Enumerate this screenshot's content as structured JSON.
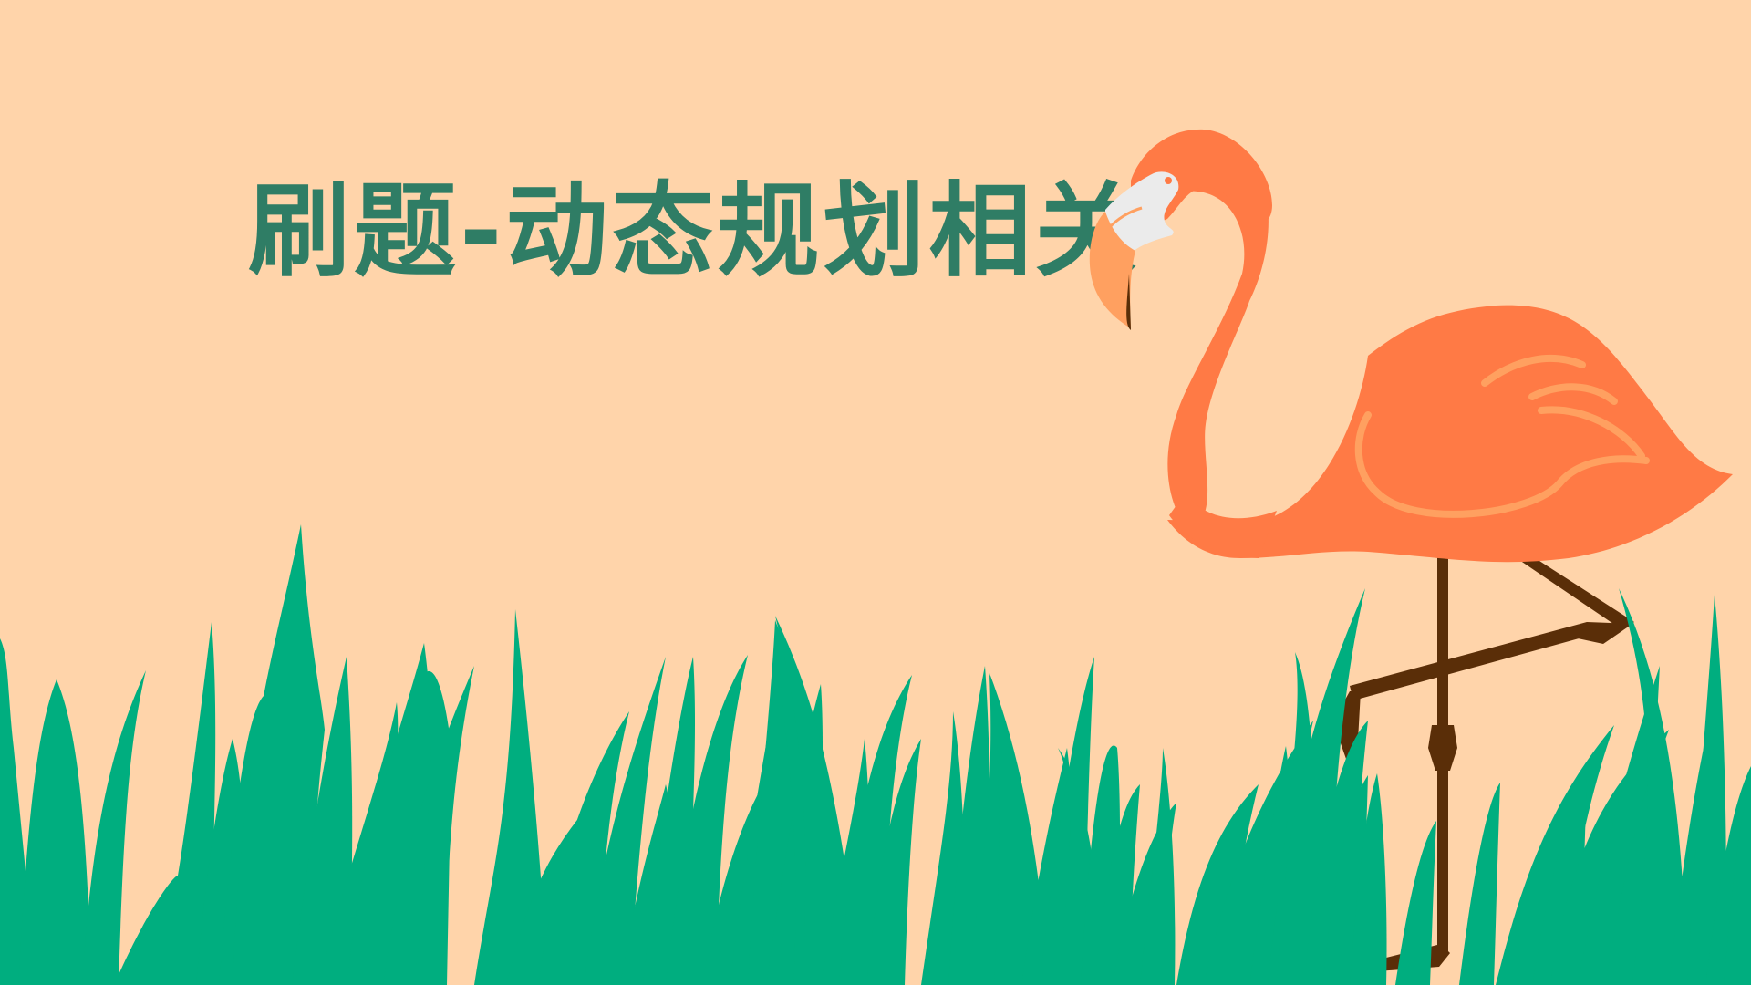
{
  "slide": {
    "title": "刷题-动态规划相关"
  },
  "colors": {
    "background": "#FFD4AA",
    "title": "#2F7D65",
    "grass": "#00AE7F",
    "flamingo_body": "#FF7A45",
    "flamingo_wing_stroke": "#FFA060",
    "flamingo_beak": "#FFA060",
    "flamingo_face": "#EBEBEB",
    "flamingo_legs": "#5A2E08"
  },
  "illustration": {
    "subject": "flamingo-icon",
    "foreground": "grass-icon"
  }
}
